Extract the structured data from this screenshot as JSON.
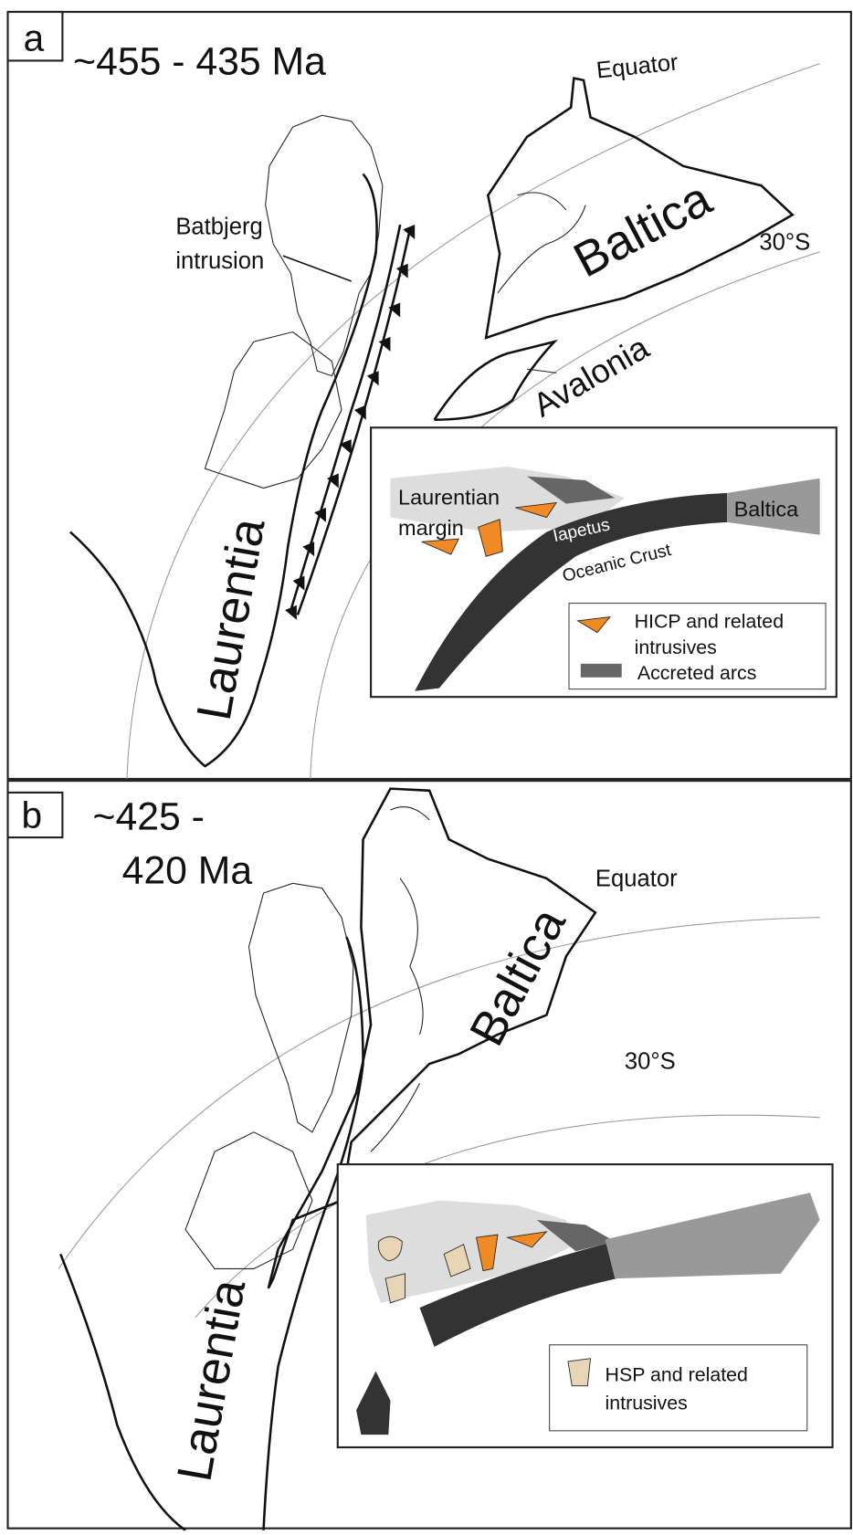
{
  "panels": [
    {
      "label": "a",
      "age": [
        "~455 - 435 Ma"
      ],
      "equator": "Equator",
      "latitude": "30°S",
      "laurentia": "Laurentia",
      "baltica": "Baltica",
      "avalonia": "Avalonia",
      "batbjerg": [
        "Batbjerg",
        "intrusion"
      ],
      "inset": {
        "margin": [
          "Laurentian",
          "margin"
        ],
        "iapetus": "Iapetus",
        "crust": "Oceanic Crust",
        "baltica": "Baltica",
        "legend": [
          {
            "label": [
              "HICP and related",
              "intrusives"
            ]
          },
          {
            "label": [
              "Accreted arcs"
            ]
          }
        ]
      }
    },
    {
      "label": "b",
      "age": [
        "~425 -",
        "420 Ma"
      ],
      "equator": "Equator",
      "latitude": "30°S",
      "laurentia": "Laurentia",
      "baltica": "Baltica",
      "inset": {
        "legend": [
          {
            "label": [
              "HSP and related",
              "intrusives"
            ]
          }
        ]
      }
    }
  ]
}
